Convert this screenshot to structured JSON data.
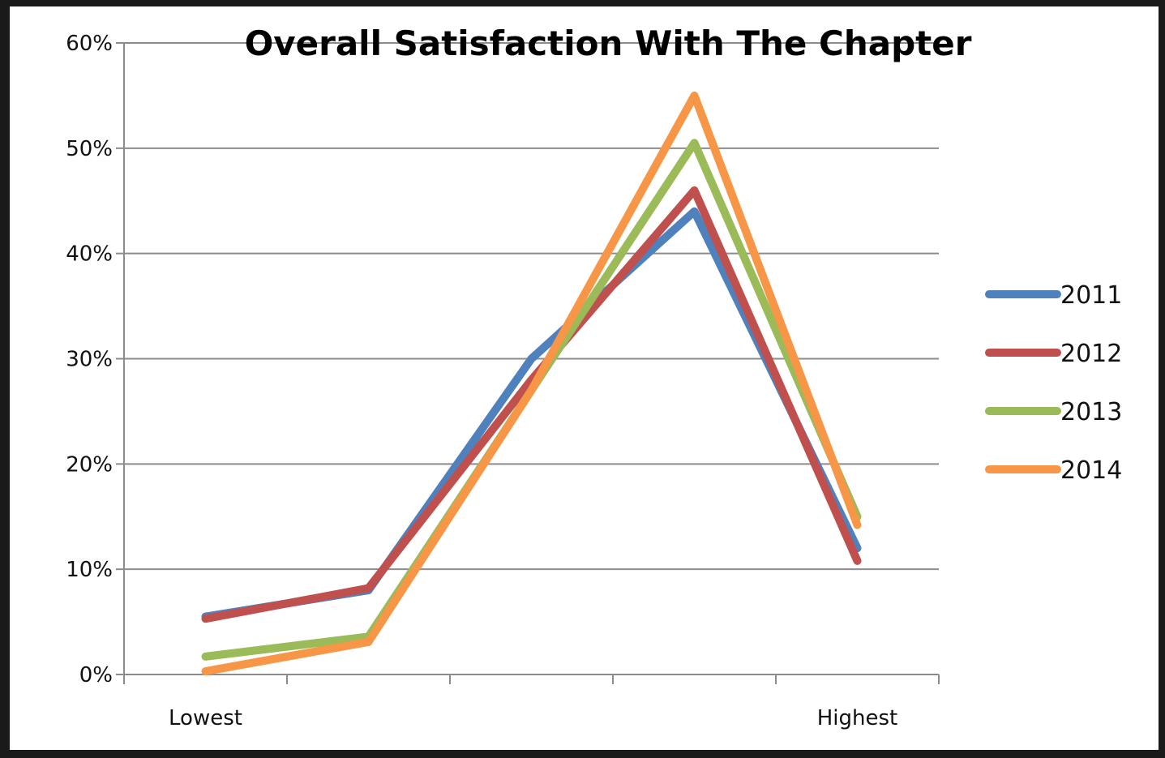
{
  "chart_data": {
    "type": "line",
    "title": "Overall Satisfaction With The Chapter",
    "xlabel": "",
    "ylabel": "",
    "categories": [
      "1",
      "2",
      "3",
      "4",
      "5"
    ],
    "category_labels": [
      "Lowest",
      "",
      "",
      "",
      "Highest"
    ],
    "ylim": [
      0,
      0.6
    ],
    "y_ticks": [
      "0%",
      "10%",
      "20%",
      "30%",
      "40%",
      "50%",
      "60%"
    ],
    "grid": true,
    "legend": "right",
    "series": [
      {
        "name": "2011",
        "color": "#4F81BD",
        "values": [
          0.055,
          0.08,
          0.3,
          0.44,
          0.12
        ]
      },
      {
        "name": "2012",
        "color": "#C0504D",
        "values": [
          0.053,
          0.082,
          0.28,
          0.46,
          0.108
        ]
      },
      {
        "name": "2013",
        "color": "#9BBB59",
        "values": [
          0.017,
          0.036,
          0.27,
          0.505,
          0.15
        ]
      },
      {
        "name": "2014",
        "color": "#F79646",
        "values": [
          0.003,
          0.031,
          0.27,
          0.55,
          0.142
        ]
      }
    ]
  }
}
